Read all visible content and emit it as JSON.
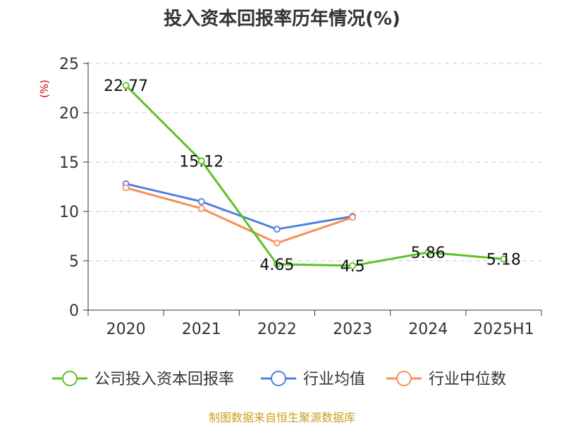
{
  "chart_data": {
    "type": "line",
    "title": "投入资本回报率历年情况(%)",
    "ylabel": "(%)",
    "categories": [
      "2020",
      "2021",
      "2022",
      "2023",
      "2024",
      "2025H1"
    ],
    "ylim": [
      0,
      25
    ],
    "yticks": [
      0,
      5,
      10,
      15,
      20,
      25
    ],
    "grid": true,
    "legend_position": "bottom",
    "series": [
      {
        "name": "公司投入资本回报率",
        "color": "#5cc228",
        "values": [
          22.77,
          15.12,
          4.65,
          4.5,
          5.86,
          5.18
        ],
        "labels": [
          "22.77",
          "15.12",
          "4.65",
          "4.5",
          "5.86",
          "5.18"
        ]
      },
      {
        "name": "行业均值",
        "color": "#4f7fe0",
        "values": [
          12.8,
          11.0,
          8.2,
          9.5,
          null,
          null
        ]
      },
      {
        "name": "行业中位数",
        "color": "#f5905a",
        "values": [
          12.4,
          10.3,
          6.8,
          9.4,
          null,
          null
        ]
      }
    ],
    "ylabel_color": "#cc0000",
    "source": "制图数据来自恒生聚源数据库"
  }
}
